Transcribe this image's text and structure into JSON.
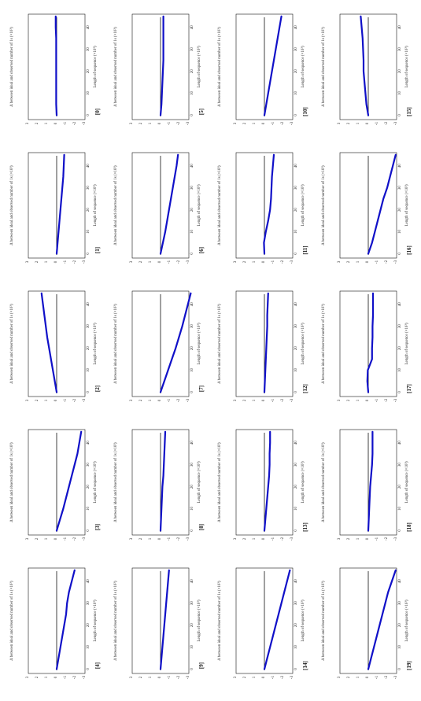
{
  "chart_data": {
    "type": "line",
    "grid_layout": "4 rows x 5 columns of small multiples, whole figure rotated 90 degrees counter-clockwise",
    "axes": {
      "x_label": "Length of sequence (×10³)",
      "y_label": "Δ between ideal and observed number of 1s (×10³)",
      "x_ticks": [
        0,
        10,
        20,
        30,
        40
      ],
      "xlim": [
        -2,
        46
      ],
      "y_ticks": [
        -3,
        -2,
        -1,
        0,
        1,
        2,
        3
      ],
      "ylim": [
        -3,
        3
      ],
      "reference_line": 0,
      "grid": false
    },
    "x": [
      0,
      5,
      10,
      15,
      20,
      25,
      30,
      35,
      40,
      45
    ],
    "panels": [
      {
        "label": "[0]",
        "values": [
          0,
          0.05,
          0.05,
          0.05,
          0.05,
          0.05,
          0.05,
          0.05,
          0.1,
          0.1
        ]
      },
      {
        "label": "[1]",
        "values": [
          0,
          -0.1,
          -0.2,
          -0.3,
          -0.4,
          -0.5,
          -0.6,
          -0.7,
          -0.75,
          -0.8
        ]
      },
      {
        "label": "[2]",
        "values": [
          0,
          0.2,
          0.4,
          0.6,
          0.8,
          1.0,
          1.15,
          1.3,
          1.45,
          1.6
        ]
      },
      {
        "label": "[3]",
        "values": [
          0,
          -0.35,
          -0.7,
          -1.0,
          -1.3,
          -1.6,
          -1.9,
          -2.2,
          -2.4,
          -2.6
        ]
      },
      {
        "label": "[4]",
        "values": [
          0,
          -0.2,
          -0.4,
          -0.6,
          -0.8,
          -1.0,
          -1.1,
          -1.3,
          -1.6,
          -1.9
        ]
      },
      {
        "label": "[5]",
        "values": [
          0,
          -0.1,
          -0.15,
          -0.2,
          -0.25,
          -0.3,
          -0.3,
          -0.3,
          -0.3,
          -0.3
        ]
      },
      {
        "label": "[6]",
        "values": [
          0,
          -0.25,
          -0.5,
          -0.7,
          -0.9,
          -1.1,
          -1.3,
          -1.5,
          -1.7,
          -1.85
        ]
      },
      {
        "label": "[7]",
        "values": [
          0,
          -0.4,
          -0.8,
          -1.2,
          -1.6,
          -1.95,
          -2.3,
          -2.6,
          -2.9,
          -3.2
        ]
      },
      {
        "label": "[8]",
        "values": [
          0,
          -0.05,
          -0.1,
          -0.15,
          -0.2,
          -0.3,
          -0.35,
          -0.4,
          -0.45,
          -0.5
        ]
      },
      {
        "label": "[9]",
        "values": [
          0,
          -0.1,
          -0.2,
          -0.3,
          -0.4,
          -0.5,
          -0.6,
          -0.7,
          -0.8,
          -0.9
        ]
      },
      {
        "label": "[10]",
        "values": [
          0,
          -0.2,
          -0.4,
          -0.6,
          -0.8,
          -1.0,
          -1.2,
          -1.4,
          -1.6,
          -1.8
        ]
      },
      {
        "label": "[11]",
        "values": [
          0,
          0.05,
          -0.15,
          -0.4,
          -0.6,
          -0.7,
          -0.75,
          -0.8,
          -0.9,
          -1.0
        ]
      },
      {
        "label": "[12]",
        "values": [
          0,
          -0.05,
          -0.1,
          -0.15,
          -0.2,
          -0.25,
          -0.3,
          -0.3,
          -0.35,
          -0.4
        ]
      },
      {
        "label": "[13]",
        "values": [
          0,
          -0.1,
          -0.2,
          -0.3,
          -0.4,
          -0.5,
          -0.55,
          -0.55,
          -0.6,
          -0.6
        ]
      },
      {
        "label": "[14]",
        "values": [
          0,
          -0.3,
          -0.6,
          -0.9,
          -1.2,
          -1.5,
          -1.8,
          -2.1,
          -2.4,
          -2.7
        ]
      },
      {
        "label": "[15]",
        "values": [
          0,
          0.2,
          0.3,
          0.4,
          0.5,
          0.5,
          0.55,
          0.6,
          0.7,
          0.8
        ]
      },
      {
        "label": "[16]",
        "values": [
          0,
          -0.4,
          -0.7,
          -1.0,
          -1.3,
          -1.6,
          -2.0,
          -2.3,
          -2.6,
          -2.9
        ]
      },
      {
        "label": "[17]",
        "values": [
          0,
          0.1,
          0.05,
          -0.4,
          -0.4,
          -0.45,
          -0.45,
          -0.5,
          -0.5,
          -0.5
        ]
      },
      {
        "label": "[18]",
        "values": [
          0,
          -0.05,
          -0.1,
          -0.15,
          -0.2,
          -0.3,
          -0.4,
          -0.45,
          -0.45,
          -0.45
        ]
      },
      {
        "label": "[19]",
        "values": [
          0,
          -0.3,
          -0.6,
          -0.9,
          -1.2,
          -1.5,
          -1.8,
          -2.1,
          -2.5,
          -2.9
        ]
      }
    ]
  },
  "colors": {
    "series": "#1010c8",
    "reference_line": "#111111",
    "text": "#222222",
    "background": "#ffffff"
  }
}
